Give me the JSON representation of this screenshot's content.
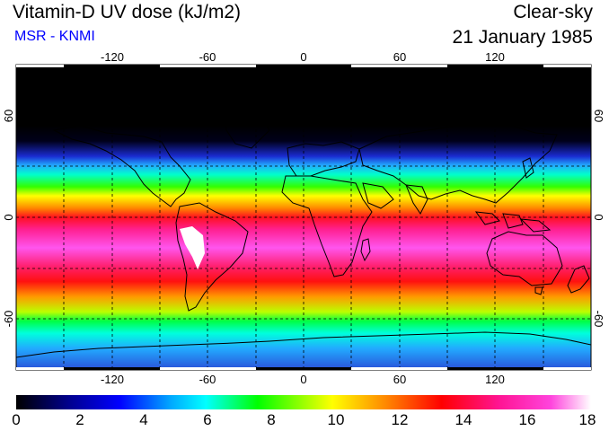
{
  "header": {
    "title": "Vitamin-D UV dose (kJ/m2)",
    "source": "MSR - KNMI",
    "sky": "Clear-sky",
    "date": "21 January 1985"
  },
  "map": {
    "lon_ticks": [
      "-120",
      "-60",
      "0",
      "60",
      "120"
    ],
    "lat_ticks": [
      "60",
      "0",
      "-60"
    ]
  },
  "colorbar": {
    "labels": [
      "0",
      "2",
      "4",
      "6",
      "8",
      "10",
      "12",
      "14",
      "16",
      "18"
    ],
    "stops": [
      "#000000",
      "#00008b",
      "#0000ff",
      "#00aaff",
      "#00ffff",
      "#00ff00",
      "#ffff00",
      "#ff8c00",
      "#ff0000",
      "#ff1493",
      "#ff44dd",
      "#ffffff"
    ]
  }
}
